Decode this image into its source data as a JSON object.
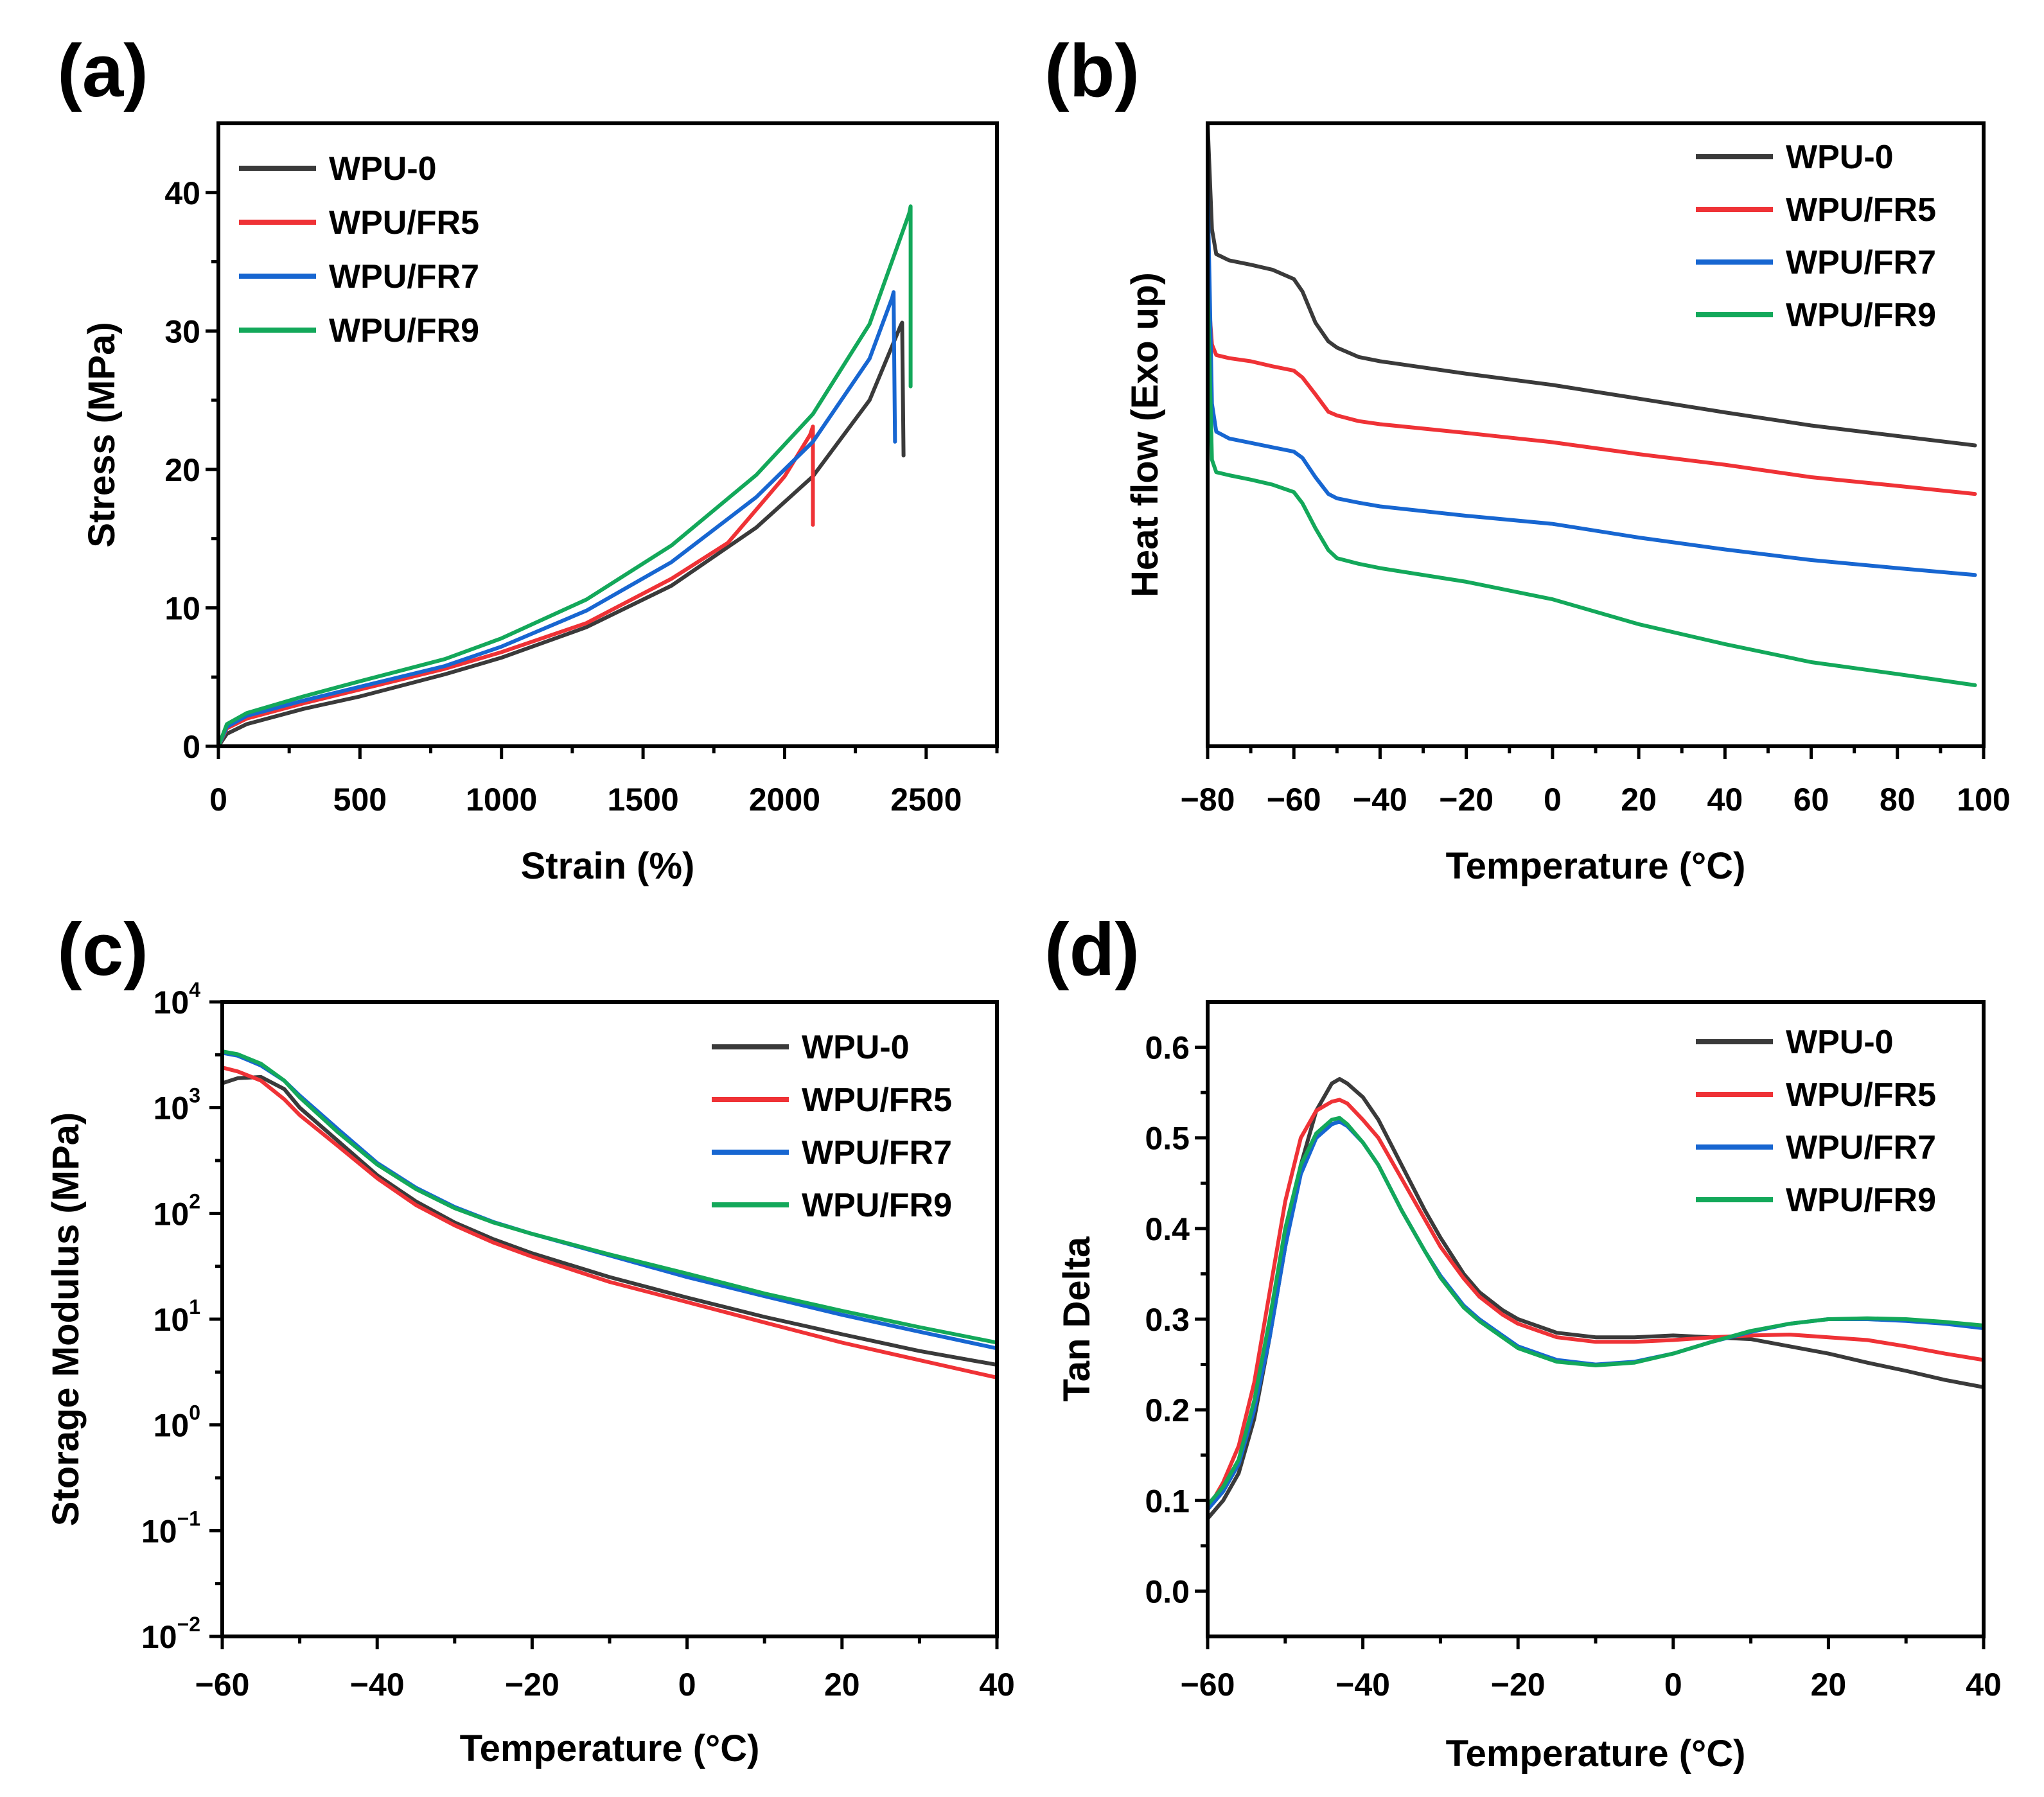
{
  "colors": {
    "WPU-0": "#3a3a3a",
    "WPU/FR5": "#ef3236",
    "WPU/FR7": "#1766d1",
    "WPU/FR9": "#13a85a"
  },
  "chart_data": [
    {
      "panel": "(a)",
      "type": "line",
      "xlabel": "Strain (%)",
      "ylabel": "Stress (MPa)",
      "xlim": [
        0,
        2750
      ],
      "ylim": [
        0,
        45
      ],
      "xticks": [
        0,
        500,
        1000,
        1500,
        2000,
        2500
      ],
      "yticks": [
        0,
        10,
        20,
        30,
        40
      ],
      "legend": "top-left",
      "series": [
        {
          "name": "WPU-0",
          "x": [
            0,
            30,
            100,
            300,
            500,
            800,
            1000,
            1300,
            1600,
            1900,
            2100,
            2300,
            2410,
            2415,
            2420
          ],
          "y": [
            0,
            0.9,
            1.6,
            2.7,
            3.6,
            5.2,
            6.4,
            8.6,
            11.6,
            15.8,
            19.5,
            25.0,
            30.4,
            30.6,
            21
          ]
        },
        {
          "name": "WPU/FR5",
          "x": [
            0,
            30,
            100,
            300,
            500,
            800,
            1000,
            1300,
            1600,
            1800,
            2000,
            2090,
            2100,
            2100
          ],
          "y": [
            0,
            1.3,
            2.0,
            3.1,
            4.1,
            5.6,
            6.8,
            8.9,
            12.1,
            14.7,
            19.5,
            22.5,
            23.1,
            16
          ]
        },
        {
          "name": "WPU/FR7",
          "x": [
            0,
            30,
            100,
            300,
            500,
            800,
            1000,
            1300,
            1600,
            1900,
            2100,
            2300,
            2380,
            2385,
            2390
          ],
          "y": [
            0,
            1.4,
            2.2,
            3.3,
            4.3,
            5.8,
            7.2,
            9.8,
            13.3,
            18.0,
            22.0,
            28.0,
            32.4,
            32.8,
            22
          ]
        },
        {
          "name": "WPU/FR9",
          "x": [
            0,
            30,
            100,
            300,
            500,
            800,
            1000,
            1300,
            1600,
            1900,
            2100,
            2300,
            2440,
            2445,
            2445
          ],
          "y": [
            0,
            1.6,
            2.4,
            3.6,
            4.7,
            6.3,
            7.8,
            10.6,
            14.5,
            19.6,
            24.0,
            30.5,
            38.5,
            39.0,
            26
          ]
        }
      ]
    },
    {
      "panel": "(b)",
      "type": "line",
      "xlabel": "Temperature (°C)",
      "ylabel": "Heat flow (Exo up)",
      "xlim": [
        -80,
        100
      ],
      "ylim": [
        0,
        100
      ],
      "xticks": [
        -80,
        -60,
        -40,
        -20,
        0,
        20,
        40,
        60,
        80,
        100
      ],
      "yticks": [],
      "legend": "top-right",
      "series": [
        {
          "name": "WPU-0",
          "x": [
            -80,
            -79,
            -78,
            -75,
            -70,
            -65,
            -60,
            -58,
            -55,
            -52,
            -50,
            -45,
            -40,
            -20,
            0,
            20,
            40,
            60,
            80,
            98
          ],
          "y": [
            100,
            83,
            79,
            78,
            77.3,
            76.5,
            75,
            73,
            68,
            65,
            64,
            62.5,
            61.8,
            59.8,
            58,
            55.8,
            53.6,
            51.5,
            49.8,
            48.3
          ]
        },
        {
          "name": "WPU/FR5",
          "x": [
            -80,
            -79,
            -78,
            -75,
            -70,
            -65,
            -60,
            -58,
            -55,
            -52,
            -50,
            -45,
            -40,
            -20,
            0,
            20,
            40,
            60,
            80,
            98
          ],
          "y": [
            74,
            64.5,
            62.8,
            62.3,
            61.8,
            61,
            60.3,
            59.2,
            56.5,
            53.7,
            53.1,
            52.2,
            51.7,
            50.3,
            48.8,
            46.9,
            45.2,
            43.2,
            41.8,
            40.5
          ]
        },
        {
          "name": "WPU/FR7",
          "x": [
            -80,
            -79,
            -78,
            -75,
            -70,
            -65,
            -60,
            -58,
            -55,
            -52,
            -50,
            -45,
            -40,
            -20,
            0,
            20,
            40,
            60,
            80,
            98
          ],
          "y": [
            90,
            55,
            50.5,
            49.4,
            48.7,
            48,
            47.3,
            46.3,
            43.2,
            40.5,
            39.8,
            39.1,
            38.5,
            37.0,
            35.7,
            33.5,
            31.6,
            29.9,
            28.6,
            27.5
          ]
        },
        {
          "name": "WPU/FR9",
          "x": [
            -80,
            -79,
            -78,
            -75,
            -70,
            -65,
            -60,
            -58,
            -55,
            -52,
            -50,
            -45,
            -40,
            -20,
            0,
            20,
            40,
            60,
            80,
            98
          ],
          "y": [
            74,
            46,
            44,
            43.5,
            42.8,
            42,
            40.8,
            39,
            35,
            31.5,
            30.2,
            29.3,
            28.6,
            26.4,
            23.6,
            19.6,
            16.4,
            13.5,
            11.6,
            9.8
          ]
        }
      ]
    },
    {
      "panel": "(c)",
      "type": "line",
      "xlabel": "Temperature (°C)",
      "ylabel": "Storage Modulus (MPa)",
      "yscale": "log",
      "xlim": [
        -60,
        40
      ],
      "ylim": [
        0.01,
        10000
      ],
      "xticks": [
        -60,
        -40,
        -20,
        0,
        20,
        40
      ],
      "yticks": [
        0.01,
        0.1,
        1,
        10,
        100,
        1000,
        10000
      ],
      "yticklabels": [
        [
          "10",
          "−2"
        ],
        [
          "10",
          "−1"
        ],
        [
          "10",
          "0"
        ],
        [
          "10",
          "1"
        ],
        [
          "10",
          "2"
        ],
        [
          "10",
          "3"
        ],
        [
          "10",
          "4"
        ]
      ],
      "legend": "top-right",
      "series": [
        {
          "name": "WPU-0",
          "x": [
            -60,
            -58,
            -55,
            -52,
            -50,
            -45,
            -40,
            -35,
            -30,
            -25,
            -20,
            -10,
            0,
            10,
            20,
            30,
            40
          ],
          "y": [
            1700,
            1900,
            1950,
            1500,
            1000,
            480,
            230,
            130,
            82,
            57,
            42,
            25,
            16,
            10.5,
            7.2,
            5.0,
            3.7
          ]
        },
        {
          "name": "WPU/FR5",
          "x": [
            -60,
            -58,
            -55,
            -52,
            -50,
            -45,
            -40,
            -35,
            -30,
            -25,
            -20,
            -10,
            0,
            10,
            20,
            30,
            40
          ],
          "y": [
            2400,
            2200,
            1800,
            1200,
            850,
            430,
            215,
            120,
            77,
            53,
            39,
            22.5,
            14.5,
            9.3,
            6.0,
            4.1,
            2.8
          ]
        },
        {
          "name": "WPU/FR7",
          "x": [
            -60,
            -58,
            -55,
            -52,
            -50,
            -45,
            -40,
            -35,
            -30,
            -25,
            -20,
            -10,
            0,
            10,
            20,
            30,
            40
          ],
          "y": [
            3300,
            3100,
            2500,
            1800,
            1300,
            620,
            300,
            175,
            115,
            83,
            64,
            40,
            25,
            16.5,
            11.0,
            7.6,
            5.3
          ]
        },
        {
          "name": "WPU/FR9",
          "x": [
            -60,
            -58,
            -55,
            -52,
            -50,
            -45,
            -40,
            -35,
            -30,
            -25,
            -20,
            -10,
            0,
            10,
            20,
            30,
            40
          ],
          "y": [
            3400,
            3200,
            2600,
            1800,
            1250,
            580,
            290,
            170,
            112,
            82,
            64,
            41,
            27,
            17.5,
            12.0,
            8.4,
            6.0
          ]
        }
      ]
    },
    {
      "panel": "(d)",
      "type": "line",
      "xlabel": "Temperature (°C)",
      "ylabel": "Tan Delta",
      "xlim": [
        -60,
        40
      ],
      "ylim": [
        -0.05,
        0.65
      ],
      "xticks": [
        -60,
        -40,
        -20,
        0,
        20,
        40
      ],
      "yticks": [
        0.0,
        0.1,
        0.2,
        0.3,
        0.4,
        0.5,
        0.6
      ],
      "yticklabels": [
        "0.0",
        "0.1",
        "0.2",
        "0.3",
        "0.4",
        "0.5",
        "0.6"
      ],
      "legend": "top-right",
      "series": [
        {
          "name": "WPU-0",
          "x": [
            -60,
            -58,
            -56,
            -54,
            -52,
            -50,
            -48,
            -46,
            -44,
            -43,
            -42,
            -40,
            -38,
            -35,
            -32,
            -30,
            -27,
            -25,
            -22,
            -20,
            -15,
            -10,
            -5,
            0,
            5,
            10,
            15,
            20,
            25,
            30,
            35,
            40
          ],
          "y": [
            0.08,
            0.1,
            0.13,
            0.19,
            0.28,
            0.38,
            0.47,
            0.53,
            0.56,
            0.565,
            0.56,
            0.545,
            0.52,
            0.47,
            0.42,
            0.39,
            0.35,
            0.33,
            0.31,
            0.3,
            0.285,
            0.28,
            0.28,
            0.282,
            0.28,
            0.278,
            0.27,
            0.262,
            0.252,
            0.243,
            0.233,
            0.225
          ]
        },
        {
          "name": "WPU/FR5",
          "x": [
            -60,
            -58,
            -56,
            -54,
            -52,
            -50,
            -48,
            -46,
            -44,
            -43,
            -42,
            -40,
            -38,
            -35,
            -32,
            -30,
            -27,
            -25,
            -22,
            -20,
            -15,
            -10,
            -5,
            0,
            5,
            10,
            15,
            20,
            25,
            30,
            35,
            40
          ],
          "y": [
            0.09,
            0.12,
            0.16,
            0.23,
            0.33,
            0.43,
            0.5,
            0.53,
            0.54,
            0.542,
            0.538,
            0.52,
            0.5,
            0.455,
            0.41,
            0.38,
            0.345,
            0.325,
            0.305,
            0.295,
            0.28,
            0.275,
            0.275,
            0.277,
            0.28,
            0.282,
            0.283,
            0.28,
            0.277,
            0.27,
            0.262,
            0.255
          ]
        },
        {
          "name": "WPU/FR7",
          "x": [
            -60,
            -58,
            -56,
            -54,
            -52,
            -50,
            -48,
            -46,
            -44,
            -43,
            -42,
            -40,
            -38,
            -35,
            -32,
            -30,
            -27,
            -25,
            -22,
            -20,
            -15,
            -10,
            -5,
            0,
            5,
            10,
            15,
            20,
            25,
            30,
            35,
            40
          ],
          "y": [
            0.09,
            0.11,
            0.14,
            0.2,
            0.28,
            0.38,
            0.46,
            0.5,
            0.515,
            0.518,
            0.513,
            0.495,
            0.47,
            0.42,
            0.375,
            0.348,
            0.315,
            0.3,
            0.282,
            0.27,
            0.255,
            0.25,
            0.253,
            0.262,
            0.275,
            0.286,
            0.295,
            0.3,
            0.3,
            0.298,
            0.295,
            0.29
          ]
        },
        {
          "name": "WPU/FR9",
          "x": [
            -60,
            -58,
            -56,
            -54,
            -52,
            -50,
            -48,
            -46,
            -44,
            -43,
            -42,
            -40,
            -38,
            -35,
            -32,
            -30,
            -27,
            -25,
            -22,
            -20,
            -15,
            -10,
            -5,
            0,
            5,
            10,
            15,
            20,
            25,
            30,
            35,
            40
          ],
          "y": [
            0.095,
            0.115,
            0.145,
            0.21,
            0.3,
            0.4,
            0.47,
            0.505,
            0.52,
            0.522,
            0.515,
            0.495,
            0.47,
            0.42,
            0.375,
            0.346,
            0.313,
            0.298,
            0.28,
            0.268,
            0.253,
            0.249,
            0.252,
            0.262,
            0.275,
            0.287,
            0.295,
            0.3,
            0.301,
            0.3,
            0.297,
            0.293
          ]
        }
      ]
    }
  ]
}
